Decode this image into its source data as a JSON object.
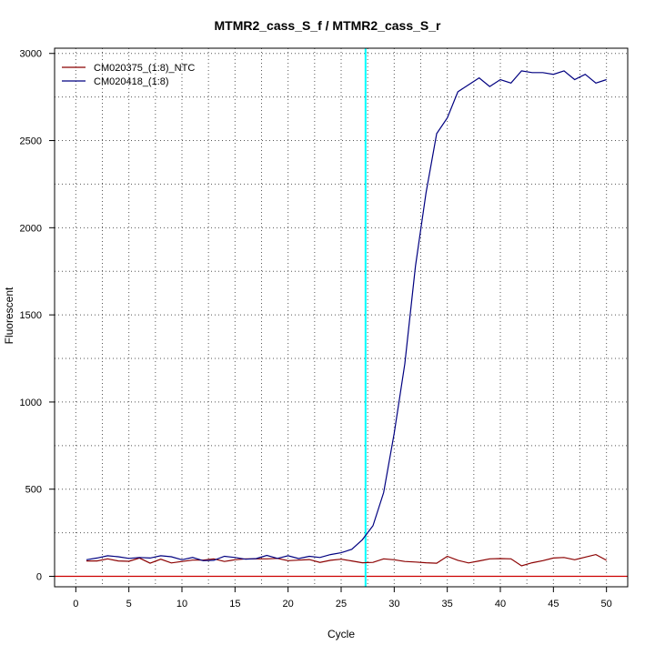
{
  "chart_data": {
    "type": "line",
    "title": "MTMR2_cass_S_f / MTMR2_cass_S_r",
    "xlabel": "Cycle",
    "ylabel": "Fluorescent",
    "xlim": [
      -2,
      52
    ],
    "ylim": [
      -60,
      3030
    ],
    "x_ticks": [
      0,
      5,
      10,
      15,
      20,
      25,
      30,
      35,
      40,
      45,
      50
    ],
    "y_ticks": [
      0,
      500,
      1000,
      1500,
      2000,
      2500,
      3000
    ],
    "grid": true,
    "legend_position": "top-left",
    "threshold_cycle": 27.3,
    "threshold_color": "#00ffff",
    "baseline_color": "#cc0000",
    "x": [
      1,
      2,
      3,
      4,
      5,
      6,
      7,
      8,
      9,
      10,
      11,
      12,
      13,
      14,
      15,
      16,
      17,
      18,
      19,
      20,
      21,
      22,
      23,
      24,
      25,
      26,
      27,
      28,
      29,
      30,
      31,
      32,
      33,
      34,
      35,
      36,
      37,
      38,
      39,
      40,
      41,
      42,
      43,
      44,
      45,
      46,
      47,
      48,
      49,
      50
    ],
    "series": [
      {
        "name": "CM020375_(1:8)_NTC",
        "color": "#8b0000",
        "values": [
          88,
          88,
          100,
          88,
          86,
          105,
          75,
          98,
          77,
          85,
          93,
          93,
          100,
          85,
          95,
          100,
          100,
          100,
          103,
          90,
          93,
          96,
          80,
          92,
          98,
          88,
          78,
          80,
          100,
          95,
          85,
          82,
          78,
          75,
          115,
          92,
          77,
          88,
          100,
          102,
          100,
          60,
          78,
          90,
          105,
          108,
          95,
          110,
          125,
          92
        ]
      },
      {
        "name": "CM020418_(1:8)",
        "color": "#000080",
        "values": [
          95,
          105,
          118,
          112,
          103,
          108,
          105,
          118,
          112,
          95,
          108,
          90,
          92,
          115,
          108,
          98,
          102,
          120,
          103,
          118,
          102,
          115,
          108,
          125,
          135,
          155,
          210,
          290,
          480,
          820,
          1220,
          1780,
          2200,
          2540,
          2630,
          2780,
          2820,
          2860,
          2810,
          2850,
          2830,
          2900,
          2890,
          2890,
          2880,
          2900,
          2850,
          2880,
          2830,
          2850
        ]
      }
    ]
  }
}
